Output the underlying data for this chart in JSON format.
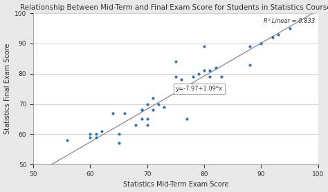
{
  "title": "Relationship Between Mid-Term and Final Exam Score for Students in Statistics Course",
  "xlabel": "Statistics Mid-Term Exam Score",
  "ylabel": "Statistics Final Exam Score",
  "xlim": [
    50,
    100
  ],
  "ylim": [
    50,
    100
  ],
  "xticks": [
    50,
    60,
    70,
    80,
    90,
    100
  ],
  "yticks": [
    50,
    60,
    70,
    80,
    90,
    100
  ],
  "r2_label": "R² Linear = 0.833",
  "equation_label": "y=-7.97+1.09*x",
  "dot_color": "#2E75B6",
  "line_color": "#888888",
  "plot_bg_color": "#ffffff",
  "fig_bg_color": "#e8e8e8",
  "scatter_x": [
    56,
    60,
    60,
    61,
    61,
    62,
    64,
    65,
    65,
    66,
    68,
    69,
    69,
    69,
    70,
    70,
    70,
    71,
    71,
    72,
    73,
    75,
    75,
    76,
    77,
    78,
    79,
    80,
    80,
    80,
    80,
    80,
    81,
    81,
    82,
    83,
    88,
    88,
    90,
    92,
    93,
    95
  ],
  "scatter_y": [
    58,
    59,
    60,
    59,
    60,
    61,
    67,
    57,
    60,
    67,
    63,
    65,
    68,
    68,
    63,
    65,
    70,
    68,
    72,
    70,
    69,
    79,
    84,
    78,
    65,
    79,
    80,
    74,
    74,
    75,
    81,
    89,
    79,
    81,
    82,
    79,
    83,
    89,
    90,
    92,
    93,
    95
  ],
  "intercept": -7.97,
  "slope": 1.09,
  "title_fontsize": 7.5,
  "axis_label_fontsize": 7,
  "tick_fontsize": 6.5,
  "annotation_fontsize": 6,
  "eq_fontsize": 6,
  "eq_x_data": 75,
  "eq_y_data": 75
}
